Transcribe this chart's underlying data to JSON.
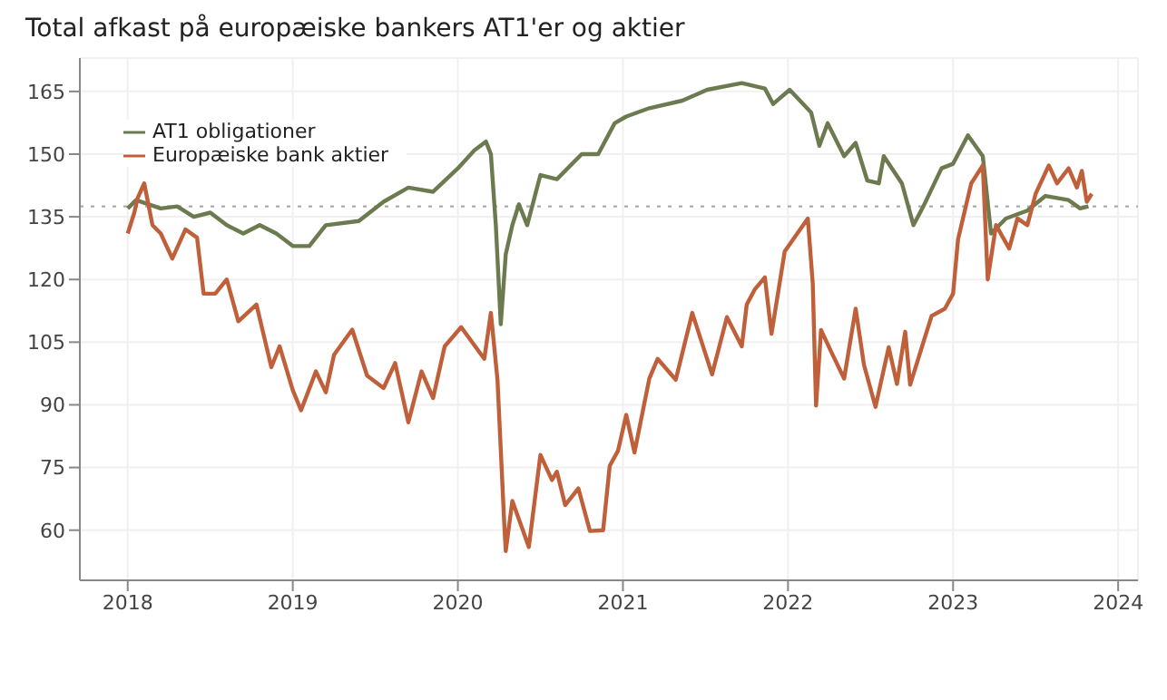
{
  "chart_data": {
    "type": "line",
    "title": "Total afkast på europæiske bankers AT1'er og aktier",
    "xlim": [
      2017.71,
      2024.12
    ],
    "xticks": [
      2018,
      2019,
      2020,
      2021,
      2022,
      2023,
      2024
    ],
    "ylim": [
      48,
      173
    ],
    "yticks": [
      60,
      75,
      90,
      105,
      120,
      135,
      150,
      165
    ],
    "grid": true,
    "legend": "top left",
    "ref_lines": [
      {
        "axis": "y",
        "value": 137.5,
        "color": "#aaaaaa",
        "line_style": "dotted"
      }
    ],
    "series": [
      {
        "name": "AT1 obligationer",
        "color": "#6b7a4f",
        "x": [
          2018.0,
          2018.05,
          2018.2,
          2018.3,
          2018.4,
          2018.5,
          2018.6,
          2018.7,
          2018.8,
          2018.9,
          2019.0,
          2019.1,
          2019.2,
          2019.4,
          2019.55,
          2019.7,
          2019.85,
          2020.0,
          2020.1,
          2020.17,
          2020.2,
          2020.23,
          2020.26,
          2020.29,
          2020.33,
          2020.37,
          2020.42,
          2020.5,
          2020.6,
          2020.75,
          2020.85,
          2020.95,
          2021.02,
          2021.16,
          2021.36,
          2021.51,
          2021.72,
          2021.86,
          2021.91,
          2022.01,
          2022.14,
          2022.19,
          2022.24,
          2022.34,
          2022.41,
          2022.48,
          2022.55,
          2022.58,
          2022.69,
          2022.76,
          2022.82,
          2022.93,
          2023.0,
          2023.09,
          2023.18,
          2023.23,
          2023.32,
          2023.45,
          2023.56,
          2023.7,
          2023.77,
          2023.82
        ],
        "values": [
          137,
          139,
          137,
          137.5,
          135,
          136,
          133,
          131,
          133,
          131,
          128,
          128,
          133,
          134,
          138.6,
          142,
          141,
          146.6,
          150.9,
          153,
          150,
          133,
          109.3,
          126,
          133,
          138,
          133,
          145,
          144,
          150,
          150,
          157.4,
          159,
          161,
          162.8,
          165.4,
          167,
          165.7,
          162,
          165.4,
          160,
          152,
          157.4,
          149.5,
          152.7,
          143.7,
          143,
          149.5,
          143,
          133,
          137.5,
          146.6,
          147.7,
          154.5,
          149.5,
          131,
          134.6,
          136.5,
          140,
          139,
          137,
          137.5
        ]
      },
      {
        "name": "Europæiske bank aktier",
        "color": "#c0603a",
        "x": [
          2018.0,
          2018.04,
          2018.06,
          2018.1,
          2018.15,
          2018.2,
          2018.27,
          2018.35,
          2018.42,
          2018.46,
          2018.53,
          2018.6,
          2018.67,
          2018.78,
          2018.81,
          2018.87,
          2018.92,
          2019.0,
          2019.05,
          2019.14,
          2019.2,
          2019.25,
          2019.36,
          2019.45,
          2019.55,
          2019.62,
          2019.7,
          2019.78,
          2019.85,
          2019.92,
          2020.02,
          2020.16,
          2020.2,
          2020.24,
          2020.28,
          2020.29,
          2020.33,
          2020.43,
          2020.5,
          2020.57,
          2020.6,
          2020.65,
          2020.73,
          2020.8,
          2020.88,
          2020.92,
          2020.97,
          2021.02,
          2021.07,
          2021.16,
          2021.21,
          2021.32,
          2021.42,
          2021.54,
          2021.63,
          2021.72,
          2021.75,
          2021.8,
          2021.86,
          2021.9,
          2021.98,
          2022.12,
          2022.15,
          2022.17,
          2022.2,
          2022.27,
          2022.34,
          2022.41,
          2022.46,
          2022.53,
          2022.61,
          2022.66,
          2022.71,
          2022.74,
          2022.87,
          2022.95,
          2023.0,
          2023.03,
          2023.11,
          2023.18,
          2023.21,
          2023.26,
          2023.34,
          2023.39,
          2023.45,
          2023.5,
          2023.58,
          2023.63,
          2023.7,
          2023.75,
          2023.78,
          2023.81,
          2023.84
        ],
        "values": [
          131,
          136,
          139.5,
          143,
          133,
          131,
          125,
          132,
          130,
          116.6,
          116.6,
          120,
          110,
          114,
          109,
          99,
          104,
          93.5,
          88.7,
          98,
          93,
          102,
          108,
          97,
          94,
          100,
          85.8,
          98,
          91.6,
          104,
          108.6,
          101,
          112,
          96,
          62.4,
          55,
          67,
          56,
          78,
          72,
          74,
          66,
          70,
          59.8,
          60,
          75.4,
          79,
          87.6,
          78.6,
          96.3,
          101,
          96,
          112,
          97.3,
          111,
          104,
          114,
          117.7,
          120.5,
          107,
          126.7,
          134.6,
          119,
          89.8,
          107.9,
          102,
          96.3,
          113,
          99.6,
          89.5,
          103.8,
          95,
          107.5,
          94.8,
          111.3,
          113,
          116.6,
          129.6,
          143,
          147.3,
          120,
          133,
          127.4,
          134.6,
          133,
          140.5,
          147.3,
          143,
          146.6,
          142,
          146,
          138.6,
          140.5
        ]
      }
    ]
  }
}
